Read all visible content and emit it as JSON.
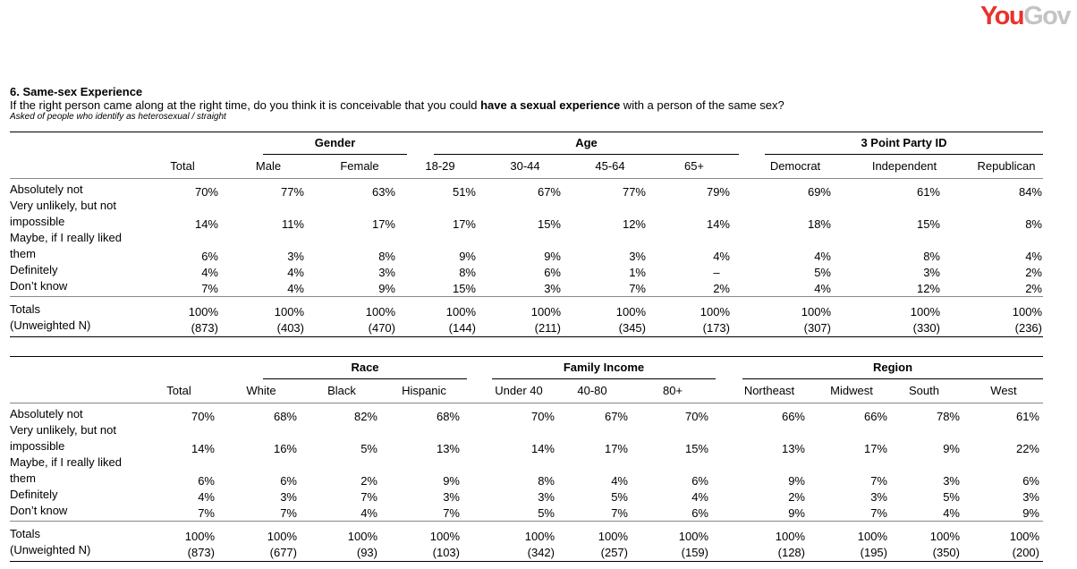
{
  "logo": {
    "part1": "You",
    "part2": "Gov"
  },
  "question": {
    "title": "6. Same-sex Experience",
    "text_before": "If the right person came along at the right time, do you think it is conceivable that you could ",
    "text_bold": "have a sexual experience",
    "text_after": " with a person of the same sex?",
    "note": "Asked of people who identify as heterosexual / straight"
  },
  "row_labels": {
    "absolutely_not": "Absolutely not",
    "very_unlikely_1": "Very unlikely, but not",
    "very_unlikely_2": "impossible",
    "maybe_1": "Maybe, if I really liked",
    "maybe_2": "them",
    "definitely": "Definitely",
    "dont_know": "Don’t know",
    "totals": "Totals",
    "unweighted": "(Unweighted N)"
  },
  "table1": {
    "groups": [
      "Gender",
      "Age",
      "3 Point Party ID"
    ],
    "columns": [
      "Total",
      "Male",
      "Female",
      "18-29",
      "30-44",
      "45-64",
      "65+",
      "Democrat",
      "Independent",
      "Republican"
    ],
    "rows": {
      "absolutely_not": [
        "70%",
        "77%",
        "63%",
        "51%",
        "67%",
        "77%",
        "79%",
        "69%",
        "61%",
        "84%"
      ],
      "very_unlikely": [
        "14%",
        "11%",
        "17%",
        "17%",
        "15%",
        "12%",
        "14%",
        "18%",
        "15%",
        "8%"
      ],
      "maybe": [
        "6%",
        "3%",
        "8%",
        "9%",
        "9%",
        "3%",
        "4%",
        "4%",
        "8%",
        "4%"
      ],
      "definitely": [
        "4%",
        "4%",
        "3%",
        "8%",
        "6%",
        "1%",
        "–",
        "5%",
        "3%",
        "2%"
      ],
      "dont_know": [
        "7%",
        "4%",
        "9%",
        "15%",
        "3%",
        "7%",
        "2%",
        "4%",
        "12%",
        "2%"
      ],
      "totals": [
        "100%",
        "100%",
        "100%",
        "100%",
        "100%",
        "100%",
        "100%",
        "100%",
        "100%",
        "100%"
      ],
      "unweighted": [
        "(873)",
        "(403)",
        "(470)",
        "(144)",
        "(211)",
        "(345)",
        "(173)",
        "(307)",
        "(330)",
        "(236)"
      ]
    }
  },
  "table2": {
    "groups": [
      "Race",
      "Family Income",
      "Region"
    ],
    "columns": [
      "Total",
      "White",
      "Black",
      "Hispanic",
      "Under 40",
      "40-80",
      "80+",
      "Northeast",
      "Midwest",
      "South",
      "West"
    ],
    "rows": {
      "absolutely_not": [
        "70%",
        "68%",
        "82%",
        "68%",
        "70%",
        "67%",
        "70%",
        "66%",
        "66%",
        "78%",
        "61%"
      ],
      "very_unlikely": [
        "14%",
        "16%",
        "5%",
        "13%",
        "14%",
        "17%",
        "15%",
        "13%",
        "17%",
        "9%",
        "22%"
      ],
      "maybe": [
        "6%",
        "6%",
        "2%",
        "9%",
        "8%",
        "4%",
        "6%",
        "9%",
        "7%",
        "3%",
        "6%"
      ],
      "definitely": [
        "4%",
        "3%",
        "7%",
        "3%",
        "3%",
        "5%",
        "4%",
        "2%",
        "3%",
        "5%",
        "3%"
      ],
      "dont_know": [
        "7%",
        "7%",
        "4%",
        "7%",
        "5%",
        "7%",
        "6%",
        "9%",
        "7%",
        "4%",
        "9%"
      ],
      "totals": [
        "100%",
        "100%",
        "100%",
        "100%",
        "100%",
        "100%",
        "100%",
        "100%",
        "100%",
        "100%",
        "100%"
      ],
      "unweighted": [
        "(873)",
        "(677)",
        "(93)",
        "(103)",
        "(342)",
        "(257)",
        "(159)",
        "(128)",
        "(195)",
        "(350)",
        "(200)"
      ]
    }
  }
}
